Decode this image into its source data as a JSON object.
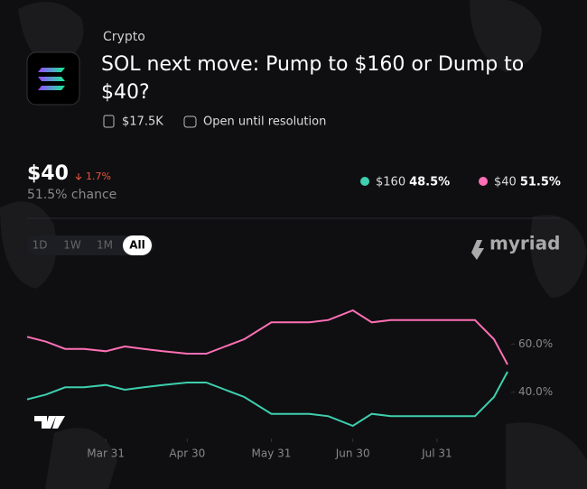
{
  "header": {
    "category": "Crypto",
    "title": "SOL next move: Pump to $160 or Dump to $40?",
    "volume": "$17.5K",
    "status": "Open until resolution"
  },
  "selected": {
    "name": "$40",
    "change": "1.7%",
    "chance": "51.5% chance"
  },
  "ranges": [
    "1D",
    "1W",
    "1M",
    "All"
  ],
  "brand": "myriad",
  "chart_data": {
    "type": "line",
    "x": [
      "Mar 2",
      "Mar 9",
      "Mar 16",
      "Mar 23",
      "Mar 31",
      "Apr 7",
      "Apr 14",
      "Apr 21",
      "Apr 30",
      "May 7",
      "May 14",
      "May 21",
      "May 31",
      "Jun 7",
      "Jun 14",
      "Jun 21",
      "Jun 30",
      "Jul 7",
      "Jul 14",
      "Jul 21",
      "Jul 31",
      "Aug 7",
      "Aug 14",
      "Aug 21",
      "Aug 26"
    ],
    "series": [
      {
        "name": "$160",
        "current": "48.5%",
        "color": "#3ecfae",
        "values": [
          37,
          39,
          42,
          42,
          43,
          41,
          42,
          43,
          44,
          44,
          41,
          38,
          31,
          31,
          31,
          30,
          26,
          31,
          30,
          30,
          30,
          30,
          30,
          38,
          48.5
        ]
      },
      {
        "name": "$40",
        "current": "51.5%",
        "color": "#ff6fb5",
        "values": [
          63,
          61,
          58,
          58,
          57,
          59,
          58,
          57,
          56,
          56,
          59,
          62,
          69,
          69,
          69,
          70,
          74,
          69,
          70,
          70,
          70,
          70,
          70,
          62,
          51.5
        ]
      }
    ],
    "xlim": [
      "Mar 2",
      "Aug 26"
    ],
    "xticks": [
      "Mar 31",
      "Apr 30",
      "May 31",
      "Jun 30",
      "Jul 31"
    ],
    "ylim": [
      23,
      83
    ],
    "yticks": [
      {
        "value": 40,
        "label": "40.0%"
      },
      {
        "value": 60,
        "label": "60.0%"
      }
    ]
  }
}
